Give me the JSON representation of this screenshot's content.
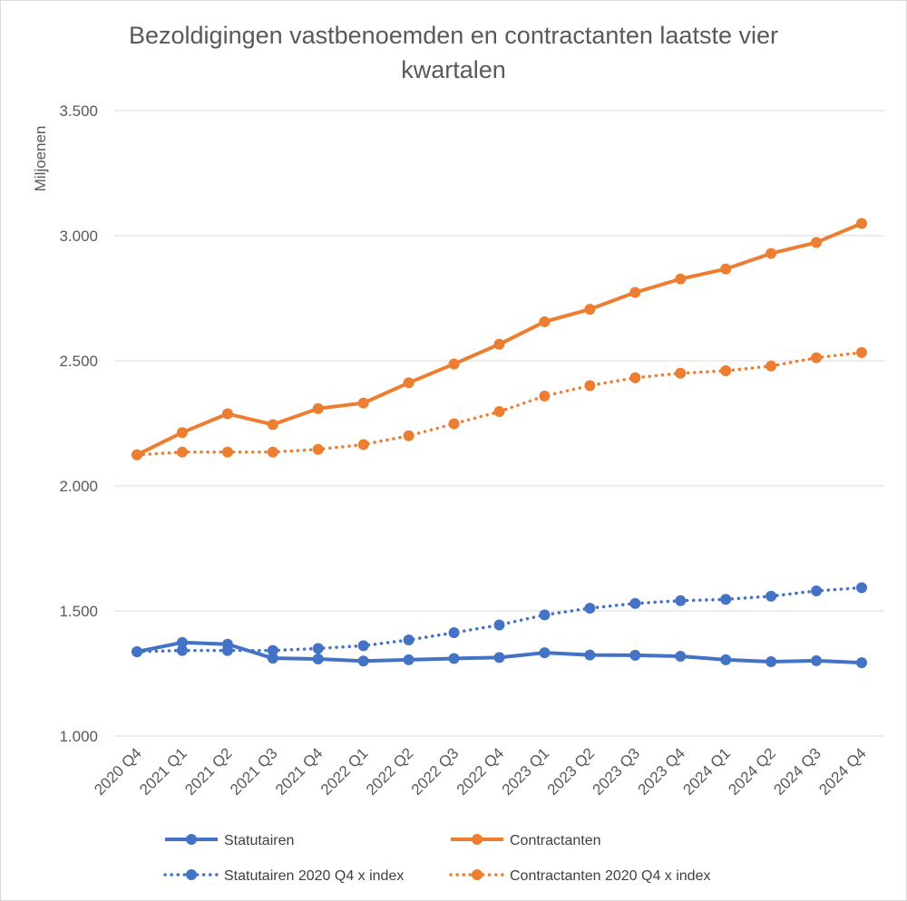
{
  "chart_data": {
    "type": "line",
    "title_lines": [
      "Bezoldigingen vastbenoemden en contractanten laatste vier",
      "kwartalen"
    ],
    "xlabel": "",
    "ylabel": "Miljoenen",
    "ylim": [
      1000,
      3500
    ],
    "yticks": [
      {
        "value": 1000,
        "label": "1.000"
      },
      {
        "value": 1500,
        "label": "1.500"
      },
      {
        "value": 2000,
        "label": "2.000"
      },
      {
        "value": 2500,
        "label": "2.500"
      },
      {
        "value": 3000,
        "label": "3.000"
      },
      {
        "value": 3500,
        "label": "3.500"
      }
    ],
    "grid": true,
    "legend_position": "bottom",
    "categories": [
      "2020 Q4",
      "2021 Q1",
      "2021 Q2",
      "2021 Q3",
      "2021 Q4",
      "2022 Q1",
      "2022 Q2",
      "2022 Q3",
      "2022 Q4",
      "2023 Q1",
      "2023 Q2",
      "2023 Q3",
      "2023 Q4",
      "2024 Q1",
      "2024 Q2",
      "2024 Q3",
      "2024 Q4"
    ],
    "series": [
      {
        "name": "Statutairen",
        "color": "#4472c4",
        "style": "solid",
        "values": [
          1337,
          1374,
          1367,
          1311,
          1308,
          1300,
          1305,
          1310,
          1314,
          1333,
          1324,
          1323,
          1319,
          1305,
          1297,
          1301,
          1293
        ]
      },
      {
        "name": "Contractanten",
        "color": "#ed7d31",
        "style": "solid",
        "values": [
          2124,
          2213,
          2288,
          2245,
          2309,
          2331,
          2412,
          2487,
          2566,
          2656,
          2706,
          2773,
          2827,
          2867,
          2929,
          2973,
          3049
        ]
      },
      {
        "name": "Statutairen 2020 Q4 x index",
        "color": "#4472c4",
        "style": "dotted",
        "values": [
          1337,
          1342,
          1342,
          1342,
          1350,
          1361,
          1384,
          1413,
          1444,
          1484,
          1511,
          1530,
          1541,
          1546,
          1559,
          1580,
          1593
        ]
      },
      {
        "name": "Contractanten 2020 Q4 x index",
        "color": "#ed7d31",
        "style": "dotted",
        "values": [
          2124,
          2135,
          2135,
          2135,
          2146,
          2165,
          2200,
          2248,
          2297,
          2359,
          2401,
          2432,
          2450,
          2460,
          2479,
          2512,
          2533
        ]
      }
    ]
  }
}
